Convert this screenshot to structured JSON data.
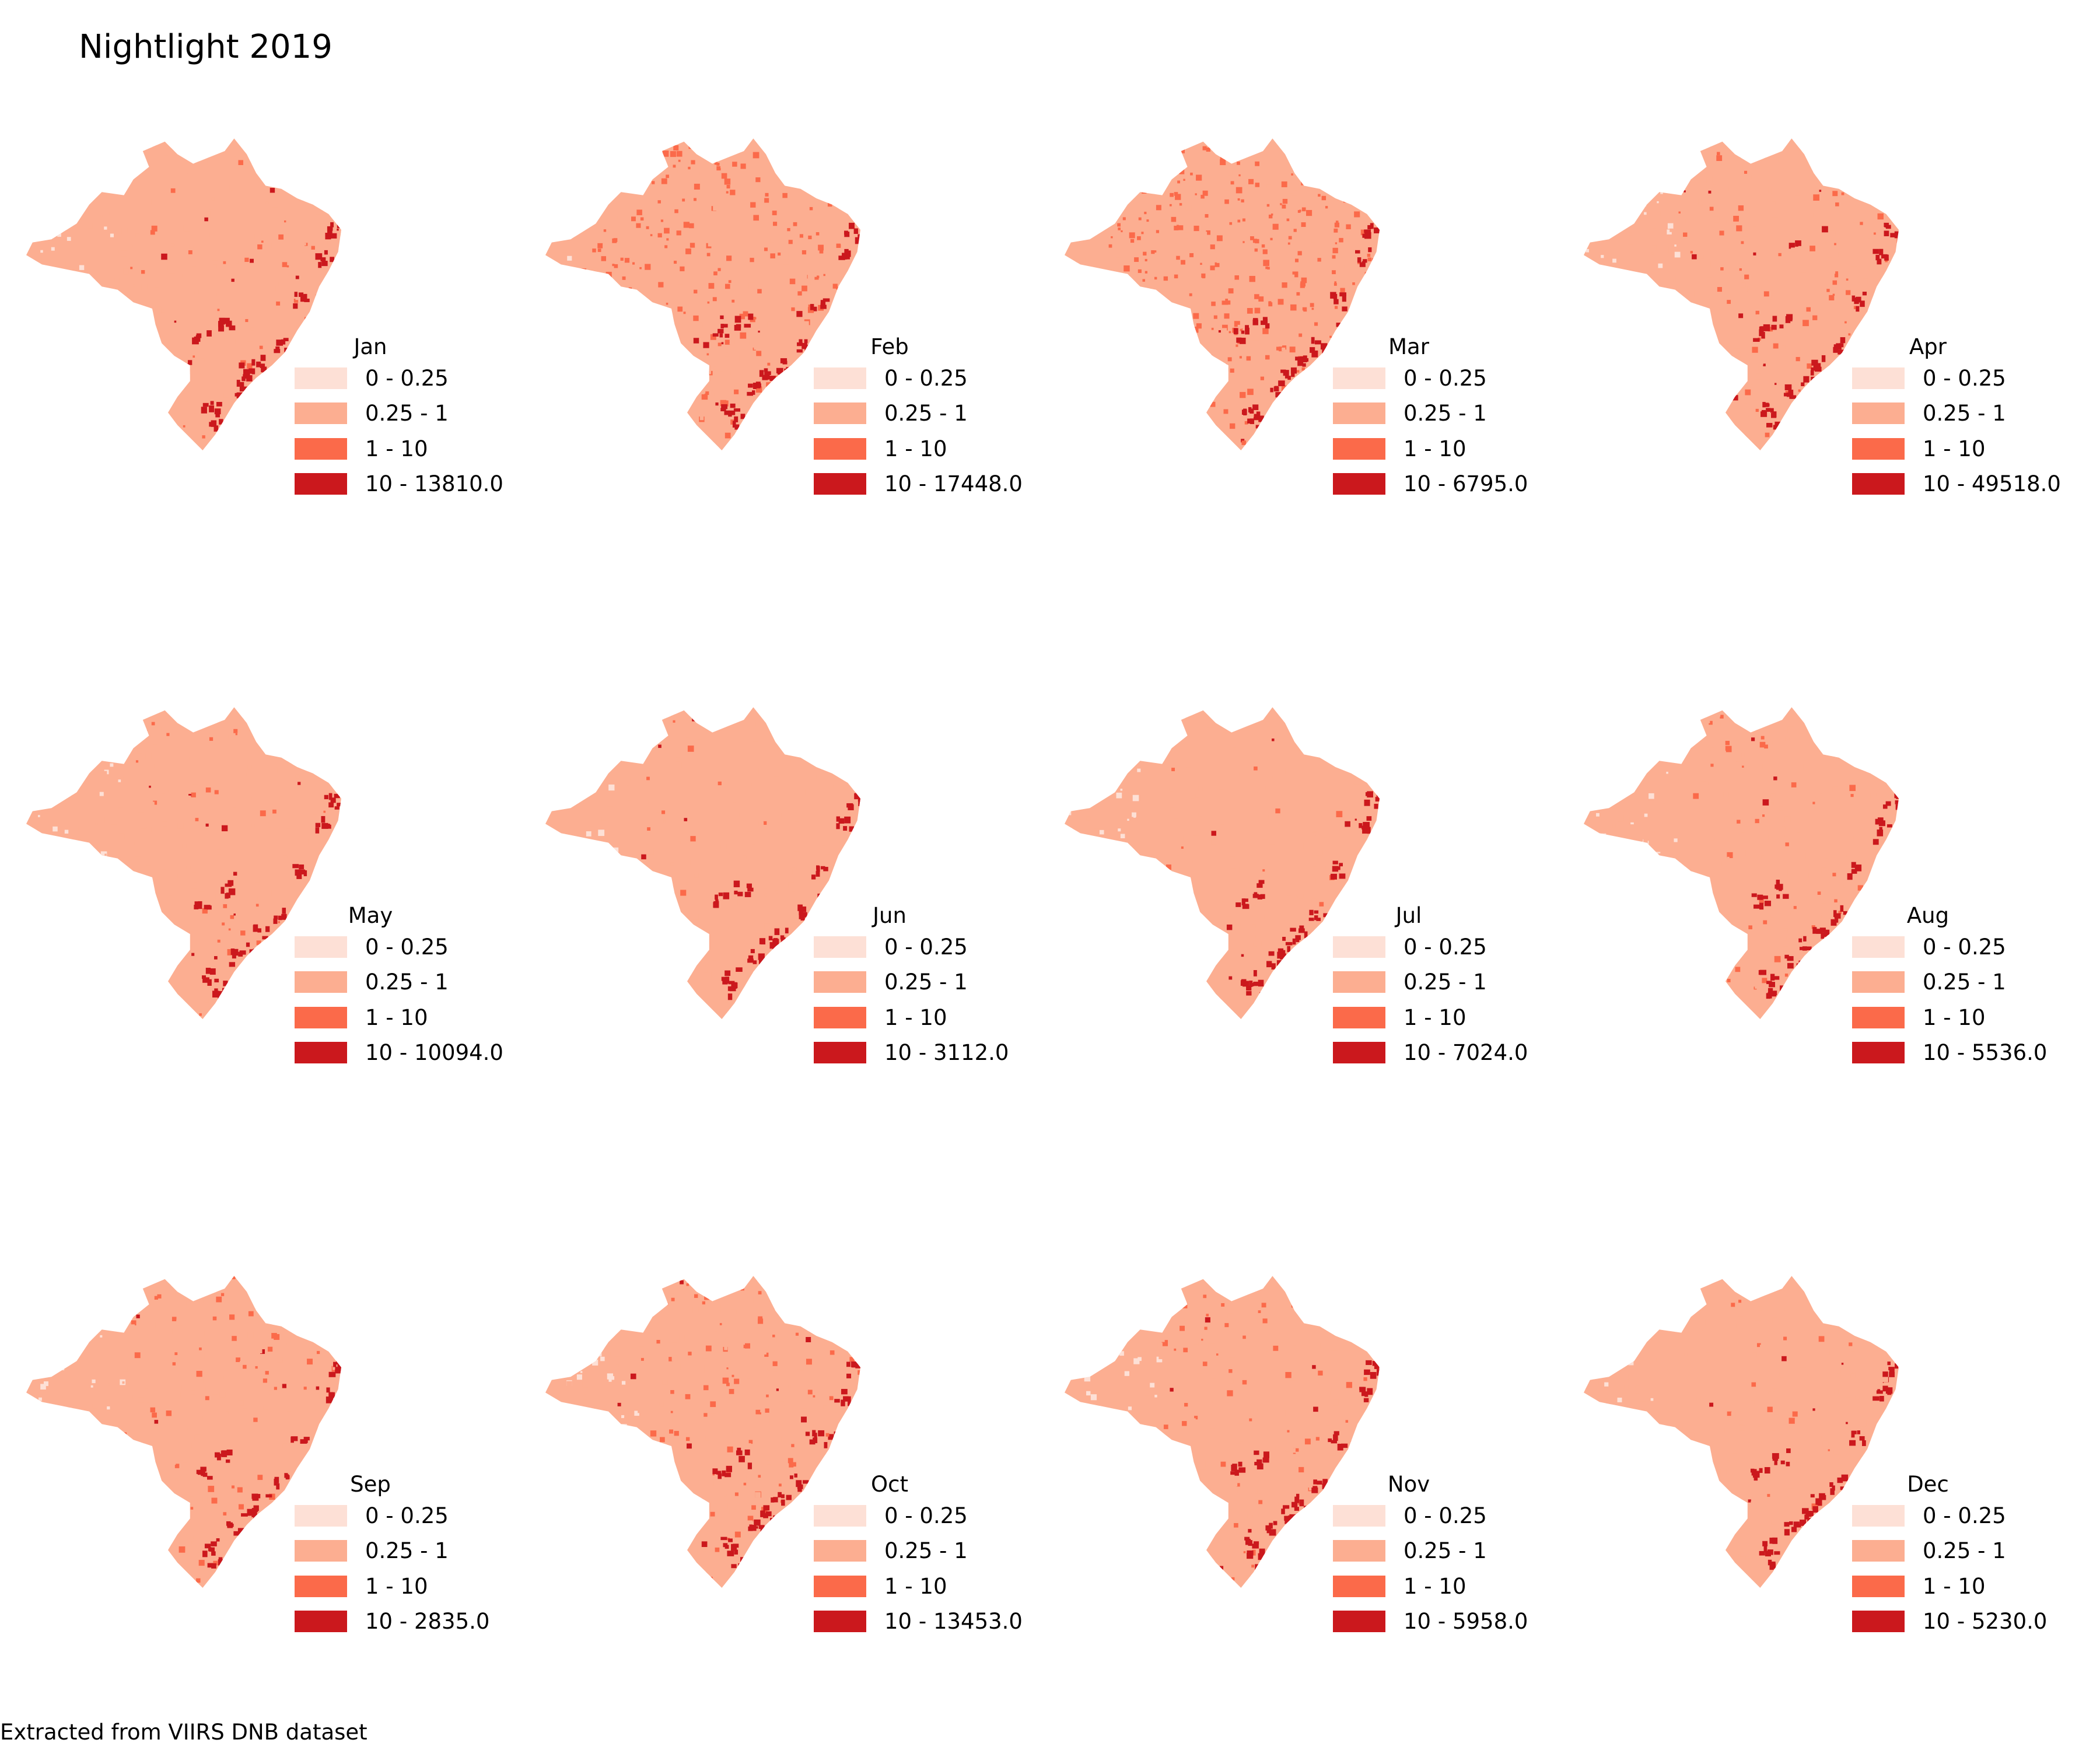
{
  "title": "Nightlight 2019",
  "footer": "Extracted from VIIRS DNB dataset",
  "colors": {
    "class_0": "#fde0d6",
    "class_1": "#fcae91",
    "class_2": "#fb6a4a",
    "class_3": "#cb181d"
  },
  "legend_classes": [
    "0 - 0.25",
    "0.25 - 1",
    "1 - 10"
  ],
  "panels": [
    {
      "month": "Jan",
      "top_class": "10 - 13810.0",
      "max": 13810.0,
      "dominant": 1,
      "speckle": 0.18
    },
    {
      "month": "Feb",
      "top_class": "10 - 17448.0",
      "max": 17448.0,
      "dominant": 2,
      "speckle": 0.35
    },
    {
      "month": "Mar",
      "top_class": "10 - 6795.0",
      "max": 6795.0,
      "dominant": 2,
      "speckle": 0.42
    },
    {
      "month": "Apr",
      "top_class": "10 - 49518.0",
      "max": 49518.0,
      "dominant": 1,
      "speckle": 0.28
    },
    {
      "month": "May",
      "top_class": "10 - 10094.0",
      "max": 10094.0,
      "dominant": 1,
      "speckle": 0.16
    },
    {
      "month": "Jun",
      "top_class": "10 - 3112.0",
      "max": 3112.0,
      "dominant": 1,
      "speckle": 0.08
    },
    {
      "month": "Jul",
      "top_class": "10 - 7024.0",
      "max": 7024.0,
      "dominant": 1,
      "speckle": 0.09
    },
    {
      "month": "Aug",
      "top_class": "10 - 5536.0",
      "max": 5536.0,
      "dominant": 1,
      "speckle": 0.14
    },
    {
      "month": "Sep",
      "top_class": "10 - 2835.0",
      "max": 2835.0,
      "dominant": 1,
      "speckle": 0.24
    },
    {
      "month": "Oct",
      "top_class": "10 - 13453.0",
      "max": 13453.0,
      "dominant": 1,
      "speckle": 0.34
    },
    {
      "month": "Nov",
      "top_class": "10 - 5958.0",
      "max": 5958.0,
      "dominant": 1,
      "speckle": 0.22
    },
    {
      "month": "Dec",
      "top_class": "10 - 5230.0",
      "max": 5230.0,
      "dominant": 1,
      "speckle": 0.12
    }
  ]
}
